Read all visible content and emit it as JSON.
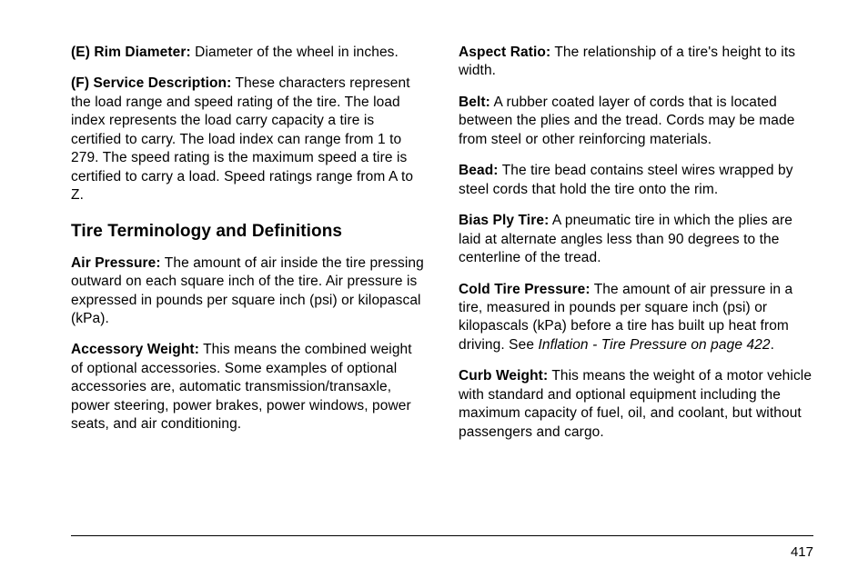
{
  "page_number": "417",
  "left": {
    "e_label": "(E) Rim Diameter:",
    "e_text": " Diameter of the wheel in inches.",
    "f_label": "(F) Service Description:",
    "f_text": " These characters represent the load range and speed rating of the tire. The load index represents the load carry capacity a tire is certified to carry. The load index can range from 1 to 279. The speed rating is the maximum speed a tire is certified to carry a load. Speed ratings range from A to Z.",
    "heading": "Tire Terminology and Definitions",
    "air_label": "Air Pressure:",
    "air_text": " The amount of air inside the tire pressing outward on each square inch of the tire. Air pressure is expressed in pounds per square inch (psi) or kilopascal (kPa).",
    "acc_label": "Accessory Weight:",
    "acc_text": " This means the combined weight of optional accessories. Some examples of optional accessories are, automatic transmission/transaxle, power steering, power brakes, power windows, power seats, and air conditioning."
  },
  "right": {
    "aspect_label": "Aspect Ratio:",
    "aspect_text": " The relationship of a tire's height to its width.",
    "belt_label": "Belt:",
    "belt_text": " A rubber coated layer of cords that is located between the plies and the tread. Cords may be made from steel or other reinforcing materials.",
    "bead_label": "Bead:",
    "bead_text": " The tire bead contains steel wires wrapped by steel cords that hold the tire onto the rim.",
    "bias_label": "Bias Ply Tire:",
    "bias_text": " A pneumatic tire in which the plies are laid at alternate angles less than 90 degrees to the centerline of the tread.",
    "cold_label": "Cold Tire Pressure:",
    "cold_text_a": " The amount of air pressure in a tire, measured in pounds per square inch (psi) or kilopascals (kPa) before a tire has built up heat from driving. See ",
    "cold_ref": "Inflation - Tire Pressure on page 422",
    "cold_text_b": ".",
    "curb_label": "Curb Weight:",
    "curb_text": " This means the weight of a motor vehicle with standard and optional equipment including the maximum capacity of fuel, oil, and coolant, but without passengers and cargo."
  }
}
